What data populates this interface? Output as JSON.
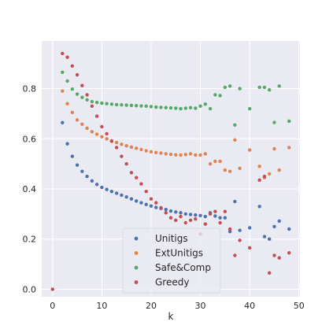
{
  "chart_data": {
    "type": "scatter",
    "title": "",
    "xlabel": "k",
    "ylabel": "",
    "xlim": [
      -2.2,
      50.2
    ],
    "ylim": [
      -0.03,
      0.99
    ],
    "xticks": [
      0,
      10,
      20,
      30,
      40,
      50
    ],
    "yticks": [
      0.0,
      0.2,
      0.4,
      0.6,
      0.8
    ],
    "ytick_labels": [
      "0.0",
      "0.2",
      "0.4",
      "0.6",
      "0.8"
    ],
    "grid": true,
    "legend_position": "lower center",
    "series": [
      {
        "name": "Unitigs",
        "color": "#4c72b0",
        "x": [
          2,
          3,
          4,
          5,
          6,
          7,
          8,
          9,
          10,
          11,
          12,
          13,
          14,
          15,
          16,
          17,
          18,
          19,
          20,
          21,
          22,
          23,
          24,
          25,
          26,
          27,
          28,
          29,
          30,
          31,
          32,
          33,
          34,
          35,
          36,
          37,
          38,
          40,
          42,
          43,
          44,
          45,
          46,
          48
        ],
        "y": [
          0.664,
          0.58,
          0.53,
          0.495,
          0.47,
          0.45,
          0.432,
          0.418,
          0.406,
          0.398,
          0.39,
          0.383,
          0.375,
          0.368,
          0.36,
          0.352,
          0.345,
          0.338,
          0.332,
          0.326,
          0.322,
          0.318,
          0.312,
          0.308,
          0.305,
          0.3,
          0.298,
          0.296,
          0.294,
          0.29,
          0.305,
          0.292,
          0.285,
          0.285,
          0.23,
          0.35,
          0.235,
          0.245,
          0.33,
          0.21,
          0.2,
          0.25,
          0.272,
          0.24
        ]
      },
      {
        "name": "ExtUnitigs",
        "color": "#dd8452",
        "x": [
          2,
          3,
          4,
          5,
          6,
          7,
          8,
          9,
          10,
          11,
          12,
          13,
          14,
          15,
          16,
          17,
          18,
          19,
          20,
          21,
          22,
          23,
          24,
          25,
          26,
          27,
          28,
          29,
          30,
          31,
          32,
          33,
          34,
          35,
          36,
          37,
          38,
          40,
          42,
          43,
          44,
          45,
          46,
          48
        ],
        "y": [
          0.79,
          0.74,
          0.705,
          0.675,
          0.658,
          0.642,
          0.628,
          0.618,
          0.608,
          0.6,
          0.592,
          0.585,
          0.578,
          0.572,
          0.567,
          0.562,
          0.557,
          0.552,
          0.548,
          0.545,
          0.543,
          0.54,
          0.538,
          0.536,
          0.535,
          0.537,
          0.54,
          0.535,
          0.535,
          0.54,
          0.5,
          0.51,
          0.51,
          0.475,
          0.47,
          0.595,
          0.482,
          0.555,
          0.49,
          0.445,
          0.46,
          0.56,
          0.475,
          0.565
        ]
      },
      {
        "name": "Safe&Comp",
        "color": "#55a868",
        "x": [
          2,
          3,
          4,
          5,
          6,
          7,
          8,
          9,
          10,
          11,
          12,
          13,
          14,
          15,
          16,
          17,
          18,
          19,
          20,
          21,
          22,
          23,
          24,
          25,
          26,
          27,
          28,
          29,
          30,
          31,
          32,
          33,
          34,
          35,
          36,
          37,
          38,
          40,
          42,
          43,
          44,
          45,
          46,
          48
        ],
        "y": [
          0.865,
          0.83,
          0.798,
          0.778,
          0.765,
          0.755,
          0.748,
          0.745,
          0.742,
          0.74,
          0.738,
          0.736,
          0.735,
          0.734,
          0.733,
          0.732,
          0.731,
          0.73,
          0.728,
          0.726,
          0.725,
          0.724,
          0.723,
          0.722,
          0.72,
          0.722,
          0.724,
          0.722,
          0.73,
          0.738,
          0.72,
          0.775,
          0.772,
          0.805,
          0.81,
          0.655,
          0.8,
          0.72,
          0.805,
          0.805,
          0.795,
          0.665,
          0.81,
          0.67
        ]
      },
      {
        "name": "Greedy",
        "color": "#c44e52",
        "x": [
          0,
          2,
          3,
          4,
          5,
          6,
          7,
          8,
          9,
          10,
          11,
          12,
          13,
          14,
          15,
          16,
          17,
          18,
          19,
          20,
          21,
          22,
          23,
          24,
          25,
          26,
          27,
          28,
          29,
          30,
          31,
          32,
          33,
          34,
          35,
          36,
          37,
          38,
          40,
          42,
          43,
          44,
          45,
          46,
          48
        ],
        "y": [
          0.0,
          0.94,
          0.925,
          0.89,
          0.855,
          0.812,
          0.775,
          0.73,
          0.69,
          0.648,
          0.62,
          0.59,
          0.565,
          0.53,
          0.5,
          0.465,
          0.445,
          0.42,
          0.39,
          0.36,
          0.345,
          0.325,
          0.305,
          0.285,
          0.275,
          0.29,
          0.265,
          0.275,
          0.28,
          0.22,
          0.26,
          0.3,
          0.31,
          0.265,
          0.31,
          0.24,
          0.135,
          0.195,
          0.165,
          0.435,
          0.45,
          0.065,
          0.135,
          0.125,
          0.145
        ]
      }
    ]
  }
}
